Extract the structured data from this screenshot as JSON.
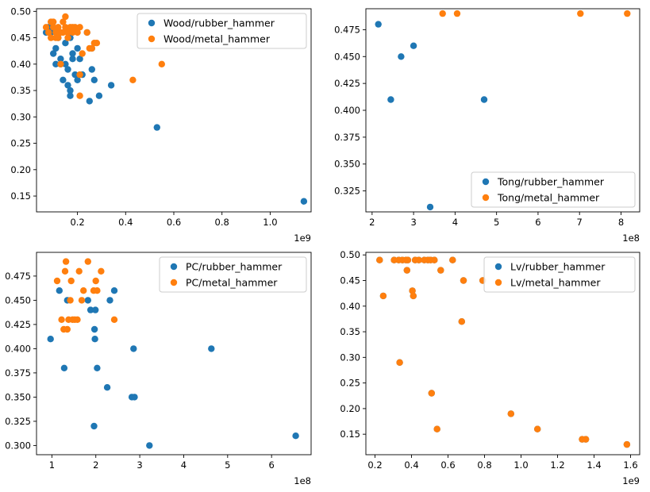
{
  "colors": {
    "rubber": "#1f77b4",
    "metal": "#ff7f0e"
  },
  "chart_data": [
    {
      "type": "scatter",
      "legend": "upper right",
      "xlim": [
        0.03,
        1.17
      ],
      "ylim": [
        0.12,
        0.505
      ],
      "xticks": [
        0.2,
        0.4,
        0.6,
        0.8,
        1.0
      ],
      "xtick_labels": [
        "0.2",
        "0.4",
        "0.6",
        "0.8",
        "1.0"
      ],
      "yticks": [
        0.15,
        0.2,
        0.25,
        0.3,
        0.35,
        0.4,
        0.45,
        0.5
      ],
      "ytick_labels": [
        "0.15",
        "0.20",
        "0.25",
        "0.30",
        "0.35",
        "0.40",
        "0.45",
        "0.50"
      ],
      "x_offset": "1e9",
      "series": [
        {
          "name": "Wood/rubber_hammer",
          "color_key": "rubber",
          "x": [
            0.07,
            0.08,
            0.09,
            0.1,
            0.11,
            0.11,
            0.12,
            0.13,
            0.13,
            0.14,
            0.15,
            0.15,
            0.16,
            0.16,
            0.17,
            0.17,
            0.17,
            0.18,
            0.18,
            0.19,
            0.2,
            0.2,
            0.21,
            0.22,
            0.24,
            0.25,
            0.26,
            0.26,
            0.27,
            0.29,
            0.34,
            0.53,
            1.14
          ],
          "y": [
            0.46,
            0.47,
            0.46,
            0.42,
            0.43,
            0.4,
            0.45,
            0.41,
            0.4,
            0.37,
            0.44,
            0.4,
            0.39,
            0.36,
            0.35,
            0.45,
            0.34,
            0.42,
            0.41,
            0.38,
            0.43,
            0.37,
            0.41,
            0.38,
            0.46,
            0.33,
            0.43,
            0.39,
            0.37,
            0.34,
            0.36,
            0.28,
            0.14
          ]
        },
        {
          "name": "Wood/metal_hammer",
          "color_key": "metal",
          "x": [
            0.07,
            0.08,
            0.09,
            0.09,
            0.1,
            0.1,
            0.11,
            0.11,
            0.12,
            0.12,
            0.13,
            0.13,
            0.14,
            0.14,
            0.15,
            0.15,
            0.16,
            0.16,
            0.17,
            0.18,
            0.18,
            0.19,
            0.2,
            0.21,
            0.21,
            0.21,
            0.22,
            0.24,
            0.25,
            0.26,
            0.27,
            0.28,
            0.43,
            0.55
          ],
          "y": [
            0.47,
            0.46,
            0.48,
            0.45,
            0.47,
            0.48,
            0.46,
            0.45,
            0.47,
            0.45,
            0.46,
            0.4,
            0.46,
            0.48,
            0.47,
            0.49,
            0.46,
            0.45,
            0.47,
            0.47,
            0.46,
            0.47,
            0.46,
            0.47,
            0.34,
            0.38,
            0.42,
            0.46,
            0.43,
            0.43,
            0.44,
            0.44,
            0.37,
            0.4
          ]
        }
      ]
    },
    {
      "type": "scatter",
      "legend": "lower right",
      "xlim": [
        1.85,
        8.45
      ],
      "ylim": [
        0.3055,
        0.4945
      ],
      "xticks": [
        2,
        3,
        4,
        5,
        6,
        7,
        8
      ],
      "xtick_labels": [
        "2",
        "3",
        "4",
        "5",
        "6",
        "7",
        "8"
      ],
      "yticks": [
        0.325,
        0.35,
        0.375,
        0.4,
        0.425,
        0.45,
        0.475
      ],
      "ytick_labels": [
        "0.325",
        "0.350",
        "0.375",
        "0.400",
        "0.425",
        "0.450",
        "0.475"
      ],
      "x_offset": "1e8",
      "series": [
        {
          "name": "Tong/rubber_hammer",
          "color_key": "rubber",
          "x": [
            2.15,
            2.45,
            2.7,
            3.0,
            3.4,
            4.7
          ],
          "y": [
            0.48,
            0.41,
            0.45,
            0.46,
            0.31,
            0.41
          ]
        },
        {
          "name": "Tong/metal_hammer",
          "color_key": "metal",
          "x": [
            3.7,
            4.05,
            7.02,
            8.15
          ],
          "y": [
            0.49,
            0.49,
            0.49,
            0.49
          ]
        }
      ]
    },
    {
      "type": "scatter",
      "legend": "upper right",
      "xlim": [
        0.65,
        6.9
      ],
      "ylim": [
        0.2905,
        0.4995
      ],
      "xticks": [
        1,
        2,
        3,
        4,
        5,
        6
      ],
      "xtick_labels": [
        "1",
        "2",
        "3",
        "4",
        "5",
        "6"
      ],
      "yticks": [
        0.3,
        0.325,
        0.35,
        0.375,
        0.4,
        0.425,
        0.45,
        0.475
      ],
      "ytick_labels": [
        "0.300",
        "0.325",
        "0.350",
        "0.375",
        "0.400",
        "0.425",
        "0.450",
        "0.475"
      ],
      "x_offset": "1e8",
      "series": [
        {
          "name": "PC/rubber_hammer",
          "color_key": "rubber",
          "x": [
            0.97,
            1.17,
            1.28,
            1.35,
            1.82,
            1.88,
            1.97,
            1.99,
            2.03,
            2.26,
            2.32,
            2.42,
            2.82,
            2.88,
            3.22,
            4.63,
            6.55
          ],
          "y": [
            0.41,
            0.46,
            0.38,
            0.45,
            0.45,
            0.44,
            0.42,
            0.44,
            0.38,
            0.36,
            0.45,
            0.46,
            0.35,
            0.35,
            0.3,
            0.4,
            0.31
          ],
          "extra": {
            "x": [
              1.96,
              2.86,
              1.98
            ],
            "y": [
              0.32,
              0.4,
              0.41
            ]
          }
        },
        {
          "name": "PC/metal_hammer",
          "color_key": "metal",
          "x": [
            1.12,
            1.22,
            1.27,
            1.3,
            1.32,
            1.35,
            1.38,
            1.42,
            1.44,
            1.47,
            1.52,
            1.58,
            1.62,
            1.68,
            1.72,
            1.82,
            1.95,
            2.0,
            2.03,
            2.12,
            2.42
          ],
          "y": [
            0.47,
            0.43,
            0.42,
            0.48,
            0.49,
            0.42,
            0.43,
            0.45,
            0.47,
            0.43,
            0.43,
            0.43,
            0.48,
            0.45,
            0.46,
            0.49,
            0.46,
            0.47,
            0.46,
            0.48,
            0.43
          ]
        }
      ]
    },
    {
      "type": "scatter",
      "legend": "upper right",
      "xlim": [
        0.15,
        1.65
      ],
      "ylim": [
        0.11,
        0.505
      ],
      "xticks": [
        0.2,
        0.4,
        0.6,
        0.8,
        1.0,
        1.2,
        1.4,
        1.6
      ],
      "xtick_labels": [
        "0.2",
        "0.4",
        "0.6",
        "0.8",
        "1.0",
        "1.2",
        "1.4",
        "1.6"
      ],
      "yticks": [
        0.15,
        0.2,
        0.25,
        0.3,
        0.35,
        0.4,
        0.45,
        0.5
      ],
      "ytick_labels": [
        "0.15",
        "0.20",
        "0.25",
        "0.30",
        "0.35",
        "0.40",
        "0.45",
        "0.50"
      ],
      "x_offset": "1e9",
      "series": [
        {
          "name": "Lv/rubber_hammer",
          "color_key": "rubber",
          "x": [
            0.225,
            0.245,
            0.305,
            0.33,
            0.335,
            0.35,
            0.37,
            0.375,
            0.38,
            0.405,
            0.41,
            0.42,
            0.44,
            0.47,
            0.49,
            0.505,
            0.51,
            0.525,
            0.54,
            0.56,
            0.625,
            0.675,
            0.685,
            0.79,
            0.945,
            1.09,
            1.335,
            1.355,
            1.58
          ],
          "y": [
            0.49,
            0.42,
            0.49,
            0.49,
            0.29,
            0.49,
            0.49,
            0.47,
            0.49,
            0.43,
            0.42,
            0.49,
            0.49,
            0.49,
            0.49,
            0.49,
            0.23,
            0.49,
            0.16,
            0.47,
            0.49,
            0.37,
            0.45,
            0.45,
            0.19,
            0.16,
            0.14,
            0.14,
            0.13
          ]
        },
        {
          "name": "Lv/metal_hammer",
          "color_key": "metal",
          "x": [
            0.225,
            0.245,
            0.305,
            0.33,
            0.335,
            0.35,
            0.37,
            0.375,
            0.38,
            0.405,
            0.41,
            0.42,
            0.44,
            0.47,
            0.49,
            0.505,
            0.51,
            0.525,
            0.54,
            0.56,
            0.625,
            0.675,
            0.685,
            0.79,
            0.945,
            1.09,
            1.335,
            1.355,
            1.58
          ],
          "y": [
            0.49,
            0.42,
            0.49,
            0.49,
            0.29,
            0.49,
            0.49,
            0.47,
            0.49,
            0.43,
            0.42,
            0.49,
            0.49,
            0.49,
            0.49,
            0.49,
            0.23,
            0.49,
            0.16,
            0.47,
            0.49,
            0.37,
            0.45,
            0.45,
            0.19,
            0.16,
            0.14,
            0.14,
            0.13
          ]
        }
      ]
    }
  ]
}
